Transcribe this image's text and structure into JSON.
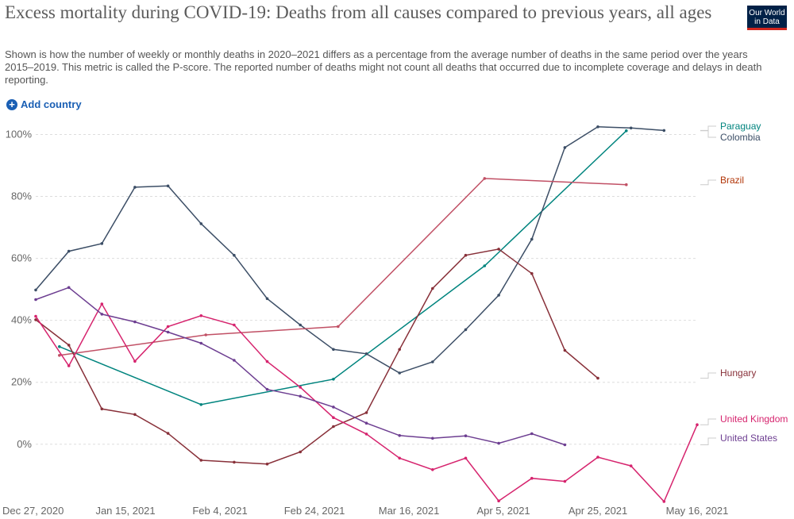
{
  "header": {
    "title": "Excess mortality during COVID-19: Deaths from all causes compared to previous years, all ages",
    "subtitle": "Shown is how the number of weekly or monthly deaths in 2020–2021 differs as a percentage from the average number of deaths in the same period over the years 2015–2019. This metric is called the P-score. The reported number of deaths might not count all deaths that occurred due to incomplete coverage and delays in death reporting.",
    "logo_line1": "Our World",
    "logo_line2": "in Data"
  },
  "controls": {
    "add_country_label": "Add country"
  },
  "chart_data": {
    "type": "line",
    "title": "Excess mortality during COVID-19: Deaths from all causes compared to previous years, all ages",
    "x_axis": {
      "type": "date",
      "range": [
        "2020-12-27",
        "2021-05-16"
      ],
      "tick_labels": [
        {
          "date": "2020-12-27",
          "label": "Dec 27, 2020"
        },
        {
          "date": "2021-01-15",
          "label": "Jan 15, 2021"
        },
        {
          "date": "2021-02-04",
          "label": "Feb 4, 2021"
        },
        {
          "date": "2021-02-24",
          "label": "Feb 24, 2021"
        },
        {
          "date": "2021-03-16",
          "label": "Mar 16, 2021"
        },
        {
          "date": "2021-04-05",
          "label": "Apr 5, 2021"
        },
        {
          "date": "2021-04-25",
          "label": "Apr 25, 2021"
        },
        {
          "date": "2021-05-16",
          "label": "May 16, 2021"
        }
      ]
    },
    "y_axis": {
      "range": [
        -18,
        105
      ],
      "ticks": [
        0,
        20,
        40,
        60,
        80,
        100
      ],
      "tick_labels": [
        "0%",
        "20%",
        "40%",
        "60%",
        "80%",
        "100%"
      ]
    },
    "grid": true,
    "legend": "right, labels at line ends",
    "series": [
      {
        "name": "Paraguay",
        "color": "#00847e",
        "points": [
          [
            "2021-01-01",
            31.5
          ],
          [
            "2021-01-31",
            12.8
          ],
          [
            "2021-02-28",
            21
          ],
          [
            "2021-04-01",
            57.6
          ],
          [
            "2021-05-01",
            101.2
          ]
        ]
      },
      {
        "name": "Colombia",
        "color": "#3c4e66",
        "points": [
          [
            "2020-12-27",
            49.8
          ],
          [
            "2021-01-03",
            62.3
          ],
          [
            "2021-01-10",
            64.8
          ],
          [
            "2021-01-17",
            83
          ],
          [
            "2021-01-24",
            83.4
          ],
          [
            "2021-01-31",
            71.2
          ],
          [
            "2021-02-07",
            61
          ],
          [
            "2021-02-14",
            47
          ],
          [
            "2021-02-21",
            38.5
          ],
          [
            "2021-02-28",
            30.6
          ],
          [
            "2021-03-07",
            29.2
          ],
          [
            "2021-03-14",
            23
          ],
          [
            "2021-03-21",
            26.6
          ],
          [
            "2021-03-28",
            37
          ],
          [
            "2021-04-04",
            48.1
          ],
          [
            "2021-04-11",
            66.2
          ],
          [
            "2021-04-18",
            95.8
          ],
          [
            "2021-04-25",
            102.5
          ],
          [
            "2021-05-02",
            102.1
          ],
          [
            "2021-05-09",
            101.3
          ]
        ]
      },
      {
        "name": "Brazil",
        "color": "#c15065",
        "points": [
          [
            "2021-01-01",
            28.7
          ],
          [
            "2021-02-01",
            35.3
          ],
          [
            "2021-03-01",
            38
          ],
          [
            "2021-04-01",
            85.8
          ],
          [
            "2021-05-01",
            83.8
          ]
        ]
      },
      {
        "name": "Hungary",
        "color": "#883039",
        "points": [
          [
            "2020-12-27",
            40.2
          ],
          [
            "2021-01-03",
            32
          ],
          [
            "2021-01-10",
            11.4
          ],
          [
            "2021-01-17",
            9.6
          ],
          [
            "2021-01-24",
            3.5
          ],
          [
            "2021-01-31",
            -5.2
          ],
          [
            "2021-02-07",
            -5.8
          ],
          [
            "2021-02-14",
            -6.4
          ],
          [
            "2021-02-21",
            -2.5
          ],
          [
            "2021-02-28",
            5.7
          ],
          [
            "2021-03-07",
            10.2
          ],
          [
            "2021-03-14",
            30.6
          ],
          [
            "2021-03-21",
            50.3
          ],
          [
            "2021-03-28",
            61
          ],
          [
            "2021-04-04",
            63
          ],
          [
            "2021-04-11",
            55.1
          ],
          [
            "2021-04-18",
            30.3
          ],
          [
            "2021-04-25",
            21.3
          ]
        ]
      },
      {
        "name": "United Kingdom",
        "color": "#d6246e",
        "points": [
          [
            "2020-12-27",
            41.3
          ],
          [
            "2021-01-03",
            25.3
          ],
          [
            "2021-01-10",
            45.3
          ],
          [
            "2021-01-17",
            26.8
          ],
          [
            "2021-01-24",
            38
          ],
          [
            "2021-01-31",
            41.5
          ],
          [
            "2021-02-07",
            38.5
          ],
          [
            "2021-02-14",
            26.7
          ],
          [
            "2021-02-21",
            18.4
          ],
          [
            "2021-02-28",
            8.6
          ],
          [
            "2021-03-07",
            3.3
          ],
          [
            "2021-03-14",
            -4.5
          ],
          [
            "2021-03-21",
            -8.2
          ],
          [
            "2021-03-28",
            -4.5
          ],
          [
            "2021-04-04",
            -18.3
          ],
          [
            "2021-04-11",
            -11
          ],
          [
            "2021-04-18",
            -12
          ],
          [
            "2021-04-25",
            -4.2
          ],
          [
            "2021-05-02",
            -7
          ],
          [
            "2021-05-09",
            -18.5
          ],
          [
            "2021-05-16",
            6.3
          ]
        ]
      },
      {
        "name": "United States",
        "color": "#6d3e91",
        "points": [
          [
            "2020-12-27",
            46.7
          ],
          [
            "2021-01-03",
            50.6
          ],
          [
            "2021-01-10",
            42
          ],
          [
            "2021-01-17",
            39.5
          ],
          [
            "2021-01-24",
            36.2
          ],
          [
            "2021-01-31",
            32.6
          ],
          [
            "2021-02-07",
            27.1
          ],
          [
            "2021-02-14",
            17.7
          ],
          [
            "2021-02-21",
            15.5
          ],
          [
            "2021-02-28",
            12
          ],
          [
            "2021-03-07",
            6.8
          ],
          [
            "2021-03-14",
            2.8
          ],
          [
            "2021-03-21",
            1.9
          ],
          [
            "2021-03-28",
            2.7
          ],
          [
            "2021-04-04",
            0.3
          ],
          [
            "2021-04-11",
            3.4
          ],
          [
            "2021-04-18",
            -0.2
          ]
        ]
      }
    ]
  }
}
